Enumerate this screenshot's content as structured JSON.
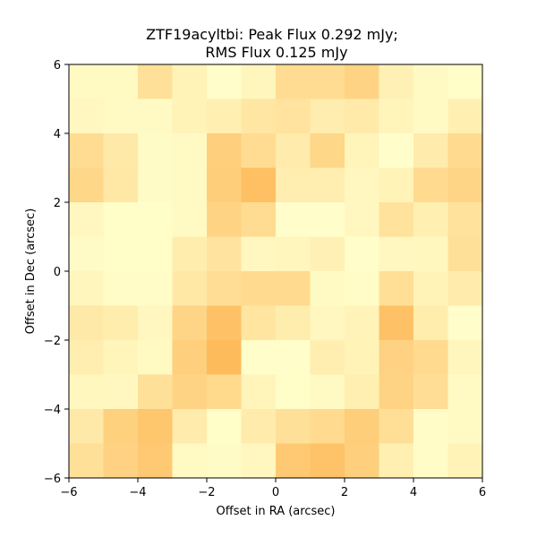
{
  "chart_data": {
    "type": "heatmap",
    "title_lines": [
      "ZTF19acyltbi: Peak Flux 0.292 mJy;",
      "RMS Flux 0.125 mJy"
    ],
    "xlabel": "Offset in RA (arcsec)",
    "ylabel": "Offset in Dec (arcsec)",
    "xlim": [
      -6,
      6
    ],
    "ylim": [
      -6,
      6
    ],
    "x_ticks": [
      -6,
      -4,
      -2,
      0,
      2,
      4,
      6
    ],
    "y_ticks": [
      -6,
      -4,
      -2,
      0,
      2,
      4,
      6
    ],
    "x_tick_labels": [
      "−6",
      "−4",
      "−2",
      "0",
      "2",
      "4",
      "6"
    ],
    "y_tick_labels": [
      "−6",
      "−4",
      "−2",
      "0",
      "2",
      "4",
      "6"
    ],
    "grid": false,
    "colormap": "YlOrRd",
    "color_low": "#ffffcc",
    "color_high": "#feb24c",
    "value_range": [
      0,
      1
    ],
    "rows_top_to_bottom": [
      [
        0.08,
        0.08,
        0.4,
        0.16,
        0.02,
        0.12,
        0.46,
        0.46,
        0.56,
        0.18,
        0.06,
        0.03
      ],
      [
        0.1,
        0.06,
        0.06,
        0.16,
        0.2,
        0.32,
        0.36,
        0.23,
        0.27,
        0.13,
        0.06,
        0.2
      ],
      [
        0.46,
        0.28,
        0.05,
        0.06,
        0.62,
        0.46,
        0.26,
        0.52,
        0.14,
        0.01,
        0.26,
        0.48
      ],
      [
        0.52,
        0.3,
        0.05,
        0.06,
        0.63,
        0.82,
        0.22,
        0.22,
        0.1,
        0.16,
        0.48,
        0.54
      ],
      [
        0.1,
        0.03,
        0.03,
        0.06,
        0.56,
        0.46,
        0.02,
        0.02,
        0.1,
        0.38,
        0.2,
        0.38
      ],
      [
        0.05,
        0.03,
        0.03,
        0.24,
        0.36,
        0.1,
        0.12,
        0.18,
        0.02,
        0.1,
        0.11,
        0.4
      ],
      [
        0.12,
        0.04,
        0.04,
        0.3,
        0.44,
        0.48,
        0.48,
        0.06,
        0.04,
        0.42,
        0.16,
        0.25
      ],
      [
        0.28,
        0.24,
        0.1,
        0.55,
        0.8,
        0.34,
        0.24,
        0.1,
        0.15,
        0.8,
        0.24,
        0.02
      ],
      [
        0.22,
        0.13,
        0.08,
        0.62,
        0.88,
        0.02,
        0.02,
        0.22,
        0.16,
        0.58,
        0.48,
        0.12
      ],
      [
        0.11,
        0.1,
        0.4,
        0.56,
        0.5,
        0.14,
        0.03,
        0.06,
        0.2,
        0.56,
        0.44,
        0.06
      ],
      [
        0.28,
        0.6,
        0.74,
        0.26,
        0.03,
        0.25,
        0.4,
        0.48,
        0.64,
        0.42,
        0.04,
        0.07
      ],
      [
        0.4,
        0.58,
        0.7,
        0.06,
        0.05,
        0.1,
        0.7,
        0.78,
        0.62,
        0.2,
        0.04,
        0.16
      ]
    ]
  }
}
